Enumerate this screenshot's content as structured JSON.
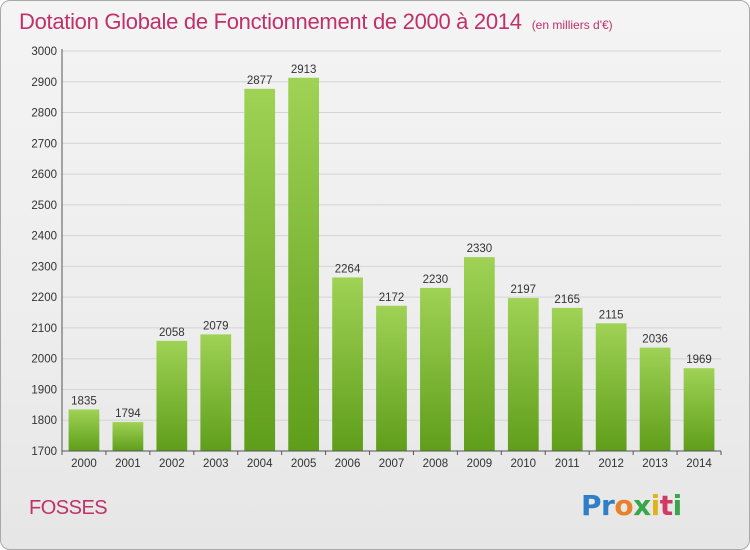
{
  "header": {
    "title": "Dotation Globale de Fonctionnement de 2000 à 2014",
    "subtitle": "(en milliers d'€)"
  },
  "city": "FOSSES",
  "logo": {
    "text": "Proxiti",
    "letters": [
      {
        "ch": "P",
        "color": "#2f7fc6"
      },
      {
        "ch": "r",
        "color": "#2f7fc6"
      },
      {
        "ch": "o",
        "color": "#e8812b"
      },
      {
        "ch": "x",
        "color": "#3aa64a"
      },
      {
        "ch": "i",
        "color": "#e0b31e"
      },
      {
        "ch": "t",
        "color": "#d23a66"
      },
      {
        "ch": "i",
        "color": "#3aa64a"
      }
    ]
  },
  "chart_data": {
    "type": "bar",
    "title": "Dotation Globale de Fonctionnement de 2000 à 2014",
    "subtitle": "(en milliers d'€)",
    "categories": [
      "2000",
      "2001",
      "2002",
      "2003",
      "2004",
      "2005",
      "2006",
      "2007",
      "2008",
      "2009",
      "2010",
      "2011",
      "2012",
      "2013",
      "2014"
    ],
    "values": [
      1835,
      1794,
      2058,
      2079,
      2877,
      2913,
      2264,
      2172,
      2230,
      2330,
      2197,
      2165,
      2115,
      2036,
      1969
    ],
    "ylim": [
      1700,
      3000
    ],
    "yticks": [
      1700,
      1800,
      1900,
      2000,
      2100,
      2200,
      2300,
      2400,
      2500,
      2600,
      2700,
      2800,
      2900,
      3000
    ],
    "grid": true,
    "bar_color_top": "#9fd255",
    "bar_color_bottom": "#5f9e1a"
  }
}
